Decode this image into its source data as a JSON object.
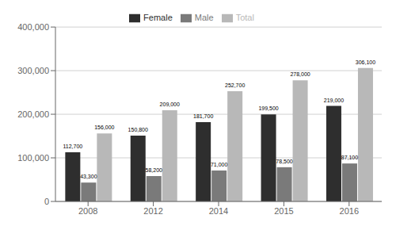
{
  "chart_data": {
    "type": "bar",
    "categories": [
      "2008",
      "2012",
      "2014",
      "2015",
      "2016"
    ],
    "series": [
      {
        "name": "Female",
        "color": "#2e2e2e",
        "values": [
          112700,
          150800,
          181700,
          199500,
          219000
        ],
        "value_labels": [
          "112,700",
          "150,800",
          "181,700",
          "199,500",
          "219,000"
        ]
      },
      {
        "name": "Male",
        "color": "#7a7a7a",
        "values": [
          43300,
          58200,
          71000,
          78500,
          87100
        ],
        "value_labels": [
          "43,300",
          "58,200",
          "71,000",
          "78,500",
          "87,100"
        ]
      },
      {
        "name": "Total",
        "color": "#b8b8b8",
        "values": [
          156000,
          209000,
          252700,
          278000,
          306100
        ],
        "value_labels": [
          "156,000",
          "209,000",
          "252,700",
          "278,000",
          "306,100"
        ]
      }
    ],
    "ylim": [
      0,
      400000
    ],
    "yticks": [
      {
        "value": 0,
        "label": "0"
      },
      {
        "value": 100000,
        "label": "100,000"
      },
      {
        "value": 200000,
        "label": "200,000"
      },
      {
        "value": 300000,
        "label": "300,000"
      },
      {
        "value": 400000,
        "label": "400,000"
      }
    ],
    "grid": true,
    "legend": "top",
    "data_labels": true
  }
}
